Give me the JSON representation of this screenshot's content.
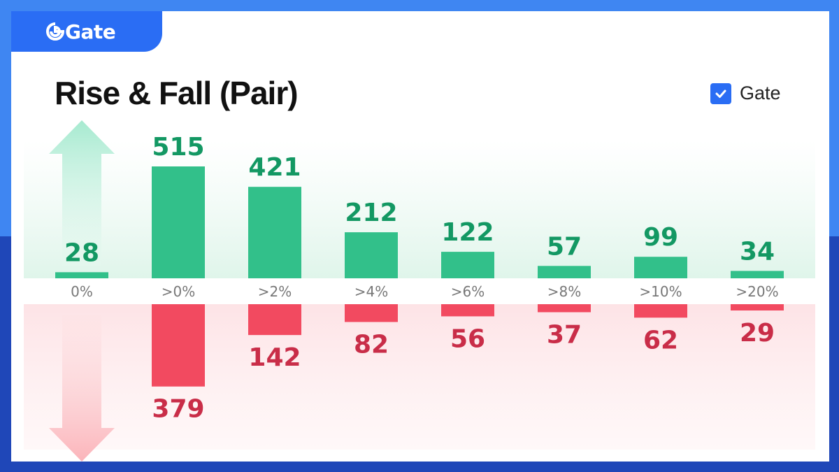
{
  "brand": {
    "name": "Gate",
    "logo_icon": "gate-logo-icon"
  },
  "legend": {
    "label": "Gate",
    "checked": true
  },
  "colors": {
    "rise": "#32c08a",
    "rise_text": "#139863",
    "fall": "#f24a60",
    "fall_text": "#c92d48",
    "accent": "#2a6df4"
  },
  "chart_data": {
    "type": "bar",
    "title": "Rise & Fall (Pair)",
    "categories": [
      "0%",
      ">0%",
      ">2%",
      ">4%",
      ">6%",
      ">8%",
      ">10%",
      ">20%"
    ],
    "series": [
      {
        "name": "Rise",
        "values": [
          28,
          515,
          421,
          212,
          122,
          57,
          99,
          34
        ]
      },
      {
        "name": "Fall",
        "values": [
          0,
          379,
          142,
          82,
          56,
          37,
          62,
          29
        ]
      }
    ],
    "fall_labels": [
      "",
      "379",
      "142",
      "82",
      "56",
      "37",
      "62",
      "29"
    ],
    "legend_position": "top-right",
    "grid": false
  }
}
